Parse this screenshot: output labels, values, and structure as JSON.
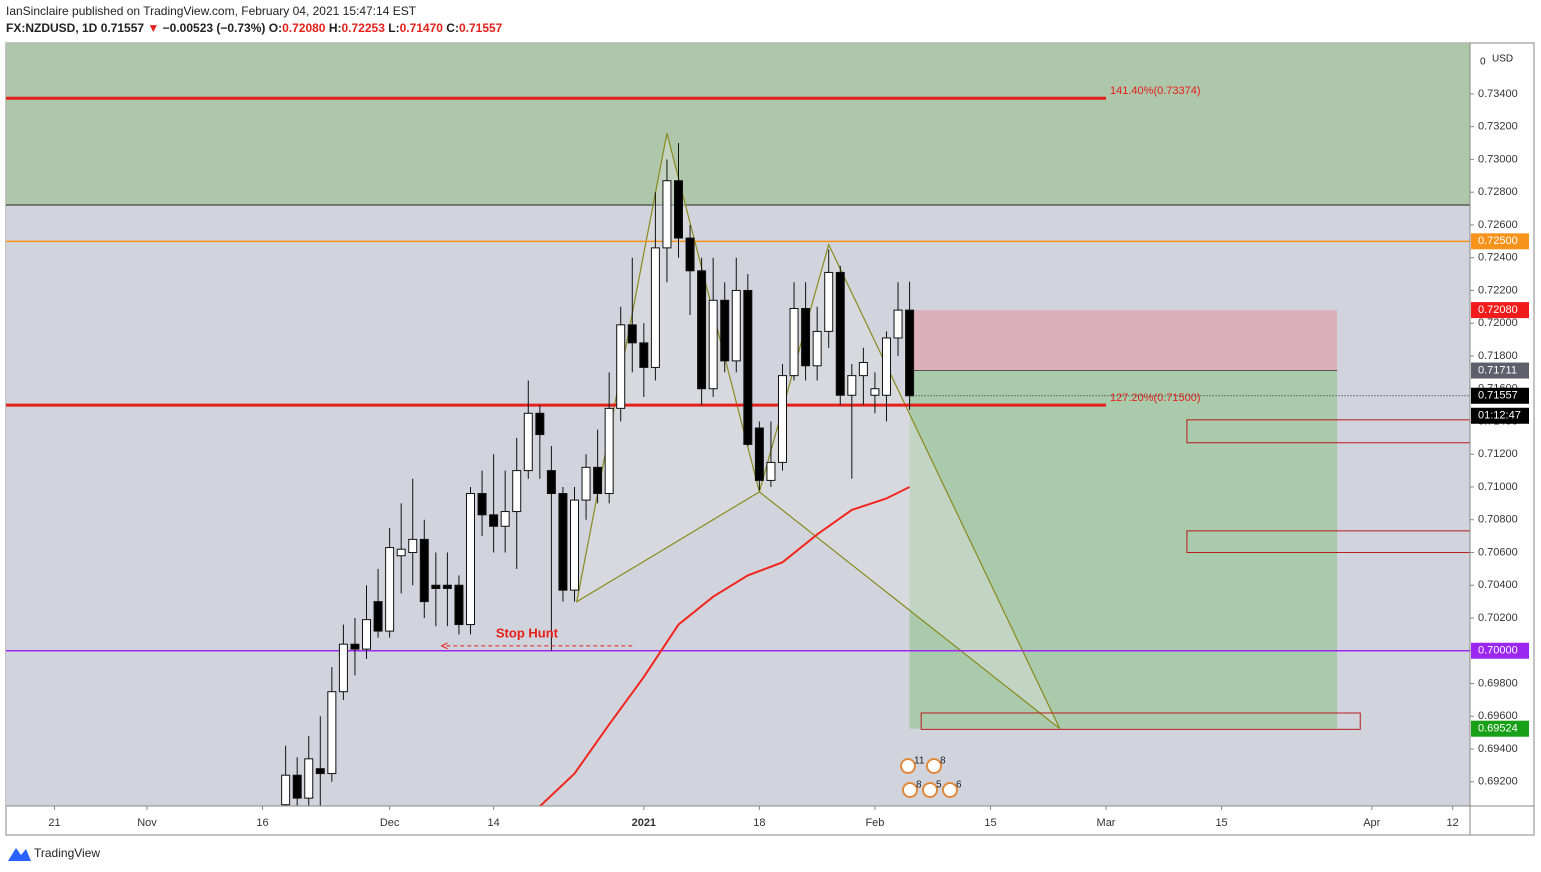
{
  "header": {
    "publisher": "IanSinclaire published on TradingView.com, February 04, 2021 15:47:14 EST",
    "symbol": "FX:NZDUSD, 1D",
    "last": "0.71557",
    "arrow": "▼",
    "change": "−0.00523 (−0.73%)",
    "o_label": "O:",
    "o": "0.72080",
    "h_label": "H:",
    "h": "0.72253",
    "l_label": "L:",
    "l": "0.71470",
    "c_label": "C:",
    "c": "0.71557"
  },
  "chart_data": {
    "type": "candlestick",
    "xlim": [
      -55.2,
      71.5
    ],
    "ylim": [
      0.69052,
      0.73711
    ],
    "axis_top_label": "0",
    "currency": "USD",
    "yticks": [
      {
        "value": 0.734,
        "label": "0.73400"
      },
      {
        "value": 0.732,
        "label": "0.73200"
      },
      {
        "value": 0.73,
        "label": "0.73000"
      },
      {
        "value": 0.728,
        "label": "0.72800"
      },
      {
        "value": 0.726,
        "label": "0.72600"
      },
      {
        "value": 0.724,
        "label": "0.72400"
      },
      {
        "value": 0.722,
        "label": "0.72200"
      },
      {
        "value": 0.72,
        "label": "0.72000"
      },
      {
        "value": 0.718,
        "label": "0.71800"
      },
      {
        "value": 0.716,
        "label": "0.71600"
      },
      {
        "value": 0.714,
        "label": "0.71400"
      },
      {
        "value": 0.712,
        "label": "0.71200"
      },
      {
        "value": 0.71,
        "label": "0.71000"
      },
      {
        "value": 0.708,
        "label": "0.70800"
      },
      {
        "value": 0.706,
        "label": "0.70600"
      },
      {
        "value": 0.704,
        "label": "0.70400"
      },
      {
        "value": 0.702,
        "label": "0.70200"
      },
      {
        "value": 0.7,
        "label": "0.70000"
      },
      {
        "value": 0.698,
        "label": "0.69800"
      },
      {
        "value": 0.696,
        "label": "0.69600"
      },
      {
        "value": 0.694,
        "label": "0.69400"
      },
      {
        "value": 0.692,
        "label": "0.69200"
      }
    ],
    "xticks": [
      {
        "value": -51,
        "label": "21"
      },
      {
        "value": -43,
        "label": "Nov"
      },
      {
        "value": -33,
        "label": "16"
      },
      {
        "value": -22,
        "label": "Dec"
      },
      {
        "value": -13,
        "label": "14"
      },
      {
        "value": 0,
        "label": "2021"
      },
      {
        "value": 10,
        "label": "18"
      },
      {
        "value": 20,
        "label": "Feb"
      },
      {
        "value": 30,
        "label": "15"
      },
      {
        "value": 40,
        "label": "Mar"
      },
      {
        "value": 50,
        "label": "15"
      },
      {
        "value": 63,
        "label": "Apr"
      },
      {
        "value": 70,
        "label": "12"
      }
    ],
    "x": [
      -31,
      -30,
      -29,
      -28,
      -27,
      -26,
      -25,
      -24,
      -23,
      -22,
      -21,
      -20,
      -19,
      -18,
      -17,
      -16,
      -15,
      -14,
      -13,
      -12,
      -11,
      -10,
      -9,
      -8,
      -7,
      -6,
      -5,
      -4,
      -3,
      -2,
      -1,
      0,
      1,
      2,
      3,
      4,
      5,
      6,
      7,
      8,
      9,
      10,
      11,
      12,
      13,
      14,
      15,
      16,
      17,
      18,
      19,
      20,
      21,
      22,
      23
    ],
    "open": [
      0.6906,
      0.6924,
      0.691,
      0.6928,
      0.6925,
      0.6975,
      0.7004,
      0.7001,
      0.703,
      0.7012,
      0.7058,
      0.706,
      0.7068,
      0.704,
      0.704,
      0.704,
      0.7016,
      0.7096,
      0.7083,
      0.7076,
      0.7085,
      0.711,
      0.7145,
      0.711,
      0.7096,
      0.7037,
      0.7092,
      0.7112,
      0.7096,
      0.7148,
      0.7199,
      0.7188,
      0.7173,
      0.7246,
      0.7287,
      0.7252,
      0.7232,
      0.716,
      0.7214,
      0.7177,
      0.722,
      0.7136,
      0.7104,
      0.7115,
      0.7168,
      0.7209,
      0.7174,
      0.7195,
      0.7231,
      0.7156,
      0.7168,
      0.7156,
      0.7156,
      0.7191,
      0.7208
    ],
    "high": [
      0.6942,
      0.6935,
      0.6948,
      0.696,
      0.699,
      0.7016,
      0.702,
      0.704,
      0.705,
      0.7075,
      0.709,
      0.7105,
      0.708,
      0.706,
      0.706,
      0.7046,
      0.71,
      0.711,
      0.712,
      0.711,
      0.713,
      0.7165,
      0.715,
      0.7125,
      0.71,
      0.71,
      0.712,
      0.7135,
      0.717,
      0.721,
      0.724,
      0.72,
      0.728,
      0.73,
      0.731,
      0.726,
      0.724,
      0.724,
      0.7225,
      0.724,
      0.723,
      0.714,
      0.714,
      0.7175,
      0.7225,
      0.7225,
      0.721,
      0.7245,
      0.7235,
      0.7175,
      0.7185,
      0.717,
      0.7195,
      0.7225,
      0.72253
    ],
    "low": [
      0.69,
      0.69,
      0.6905,
      0.6905,
      0.692,
      0.697,
      0.6985,
      0.6995,
      0.7008,
      0.7008,
      0.7035,
      0.704,
      0.702,
      0.7015,
      0.7015,
      0.701,
      0.701,
      0.707,
      0.706,
      0.706,
      0.705,
      0.7105,
      0.7105,
      0.7,
      0.703,
      0.703,
      0.708,
      0.709,
      0.709,
      0.714,
      0.717,
      0.7155,
      0.7165,
      0.7225,
      0.724,
      0.7205,
      0.715,
      0.7155,
      0.717,
      0.717,
      0.7125,
      0.7098,
      0.71,
      0.711,
      0.7165,
      0.7165,
      0.7165,
      0.7185,
      0.715,
      0.7105,
      0.715,
      0.7145,
      0.714,
      0.718,
      0.7147
    ],
    "close": [
      0.6924,
      0.691,
      0.6934,
      0.6925,
      0.6975,
      0.7004,
      0.7001,
      0.7019,
      0.7012,
      0.7063,
      0.7062,
      0.7068,
      0.703,
      0.7038,
      0.7038,
      0.7016,
      0.7096,
      0.7083,
      0.7076,
      0.7085,
      0.711,
      0.7145,
      0.7132,
      0.7096,
      0.7037,
      0.7092,
      0.7112,
      0.7096,
      0.7148,
      0.7199,
      0.7188,
      0.7173,
      0.7246,
      0.7287,
      0.7252,
      0.7232,
      0.716,
      0.7214,
      0.7177,
      0.722,
      0.7126,
      0.7104,
      0.7115,
      0.7168,
      0.7209,
      0.7174,
      0.7195,
      0.7231,
      0.7156,
      0.7168,
      0.7176,
      0.716,
      0.7191,
      0.7208,
      0.71557
    ],
    "ma": {
      "color": "#f0261f",
      "x": [
        -9,
        -6,
        -3,
        0,
        3,
        6,
        9,
        12,
        15,
        18,
        21,
        23
      ],
      "values": [
        0.6905,
        0.6925,
        0.6955,
        0.6984,
        0.7016,
        0.7033,
        0.7046,
        0.7054,
        0.7071,
        0.7086,
        0.7093,
        0.71
      ]
    },
    "upper_zone_bottom": 0.72722,
    "levels": [
      {
        "value": 0.73374,
        "color": "#e5201b",
        "end": 40,
        "label": "141.40%(0.73374)"
      },
      {
        "value": 0.715,
        "color": "#e5201b",
        "end": 40,
        "label": "127.20%(0.71500)"
      },
      {
        "value": 0.725,
        "color": "#f7931a"
      },
      {
        "value": 0.7,
        "color": "#9c27f0"
      }
    ],
    "pattern": {
      "color": "#8a8a1e",
      "x": [
        -5.8,
        2,
        10,
        16,
        36
      ],
      "values": [
        0.703,
        0.7316,
        0.7097,
        0.7248,
        0.69524
      ]
    },
    "position": {
      "x_start": 23,
      "x_end": 60,
      "stop": 0.7208,
      "entry": 0.71711,
      "target": 0.69524
    },
    "boxes": [
      {
        "x_start": 47,
        "x_end": 71.5,
        "top": 0.7141,
        "bottom": 0.7127
      },
      {
        "x_start": 47,
        "x_end": 71.5,
        "top": 0.70732,
        "bottom": 0.706
      },
      {
        "x_start": 24,
        "x_end": 62,
        "top": 0.6962,
        "bottom": 0.6952
      }
    ],
    "annotation": {
      "text": "Stop Hunt",
      "x_start": -17.5,
      "x_end": -1,
      "y": 0.7003
    },
    "badges": [
      {
        "value": 0.725,
        "label": "0.72500",
        "color": "#f7931a"
      },
      {
        "value": 0.7208,
        "label": "0.72080",
        "color": "#f21b1b"
      },
      {
        "value": 0.71711,
        "label": "0.71711",
        "color": "#5d606b"
      },
      {
        "value": 0.71557,
        "label": "0.71557",
        "color": "#000000"
      },
      {
        "value": 0.7,
        "label": "0.70000",
        "color": "#9c27f0"
      },
      {
        "value": 0.69524,
        "label": "0.69524",
        "color": "#18a018"
      }
    ],
    "countdown": "01:12:47",
    "events": [
      "11",
      "8",
      "8",
      "5",
      "6"
    ]
  },
  "footer": "TradingView"
}
